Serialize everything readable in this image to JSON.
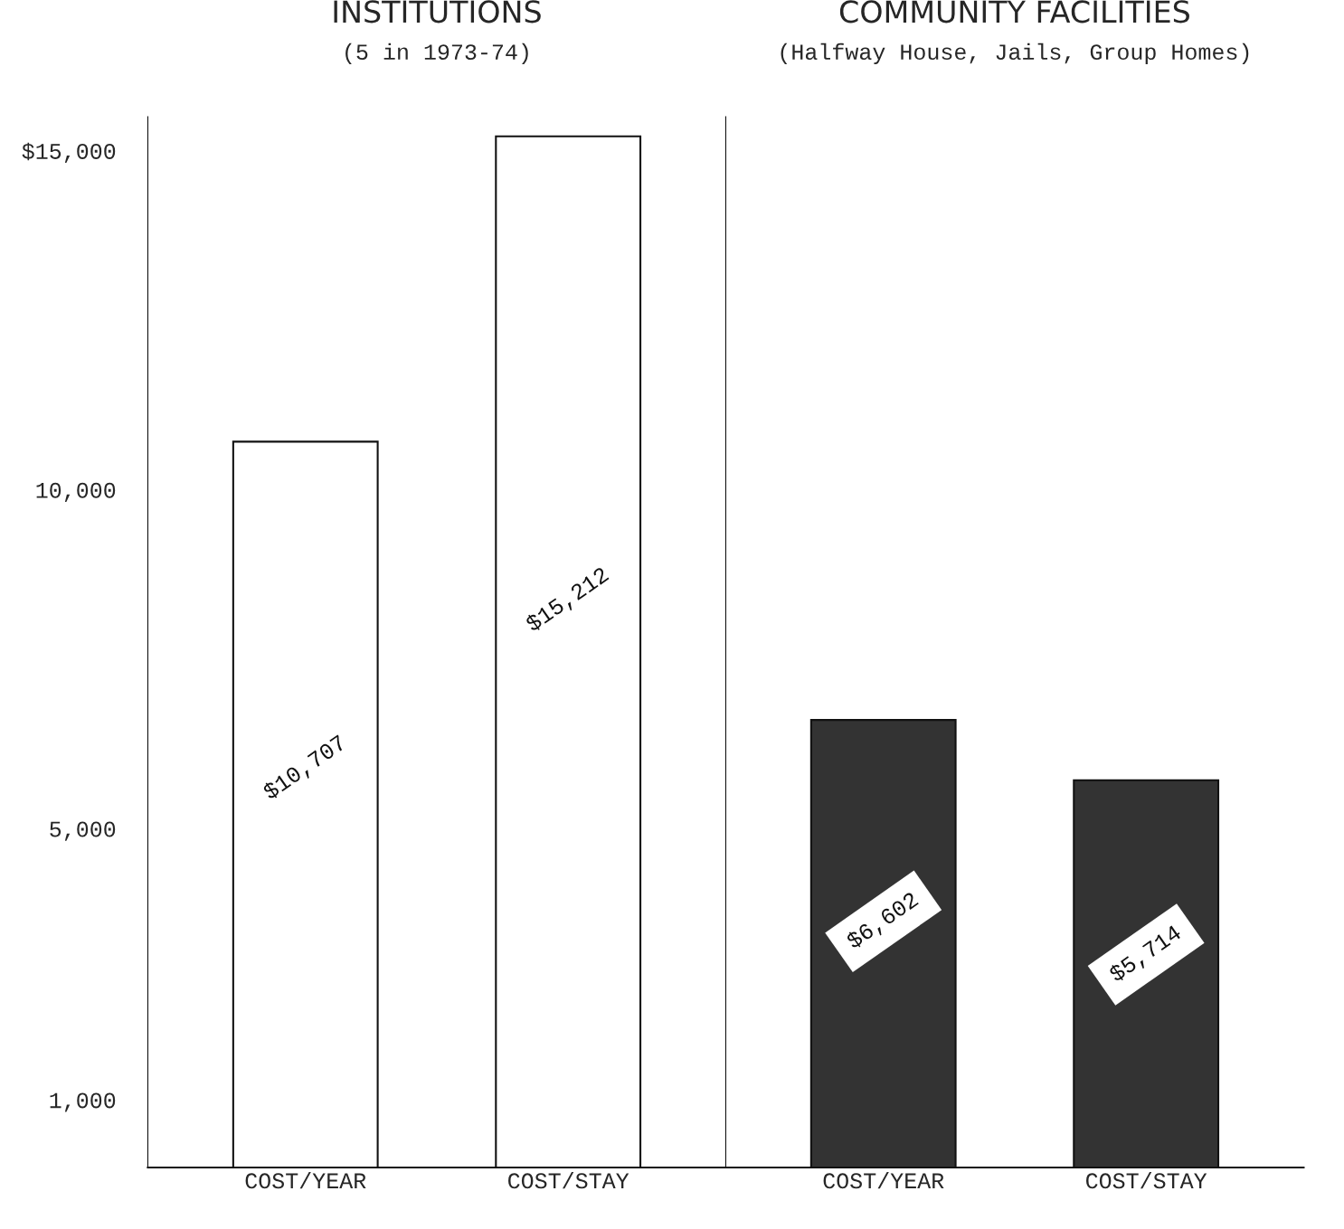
{
  "chart_data": [
    {
      "type": "bar",
      "title": "INSTITUTIONS",
      "subtitle": "(5 in 1973-74)",
      "categories": [
        "COST/YEAR",
        "COST/STAY"
      ],
      "values": [
        10707,
        15212
      ],
      "value_labels": [
        "$10,707",
        "$15,212"
      ],
      "color": "#ffffff",
      "ylim": [
        0,
        15500
      ],
      "yticks": [
        {
          "value": 1000,
          "label": "1,000"
        },
        {
          "value": 5000,
          "label": "5,000"
        },
        {
          "value": 10000,
          "label": "10,000"
        },
        {
          "value": 15000,
          "label": "$15,000"
        }
      ],
      "grid": false,
      "legend": false
    },
    {
      "type": "bar",
      "title": "COMMUNITY FACILITIES",
      "subtitle": "(Halfway House, Jails, Group Homes)",
      "categories": [
        "COST/YEAR",
        "COST/STAY"
      ],
      "values": [
        6602,
        5714
      ],
      "value_labels": [
        "$6,602",
        "$5,714"
      ],
      "color": "#333333",
      "ylim": [
        0,
        15500
      ],
      "tick_labels": "x",
      "grid": false,
      "legend": false
    }
  ]
}
